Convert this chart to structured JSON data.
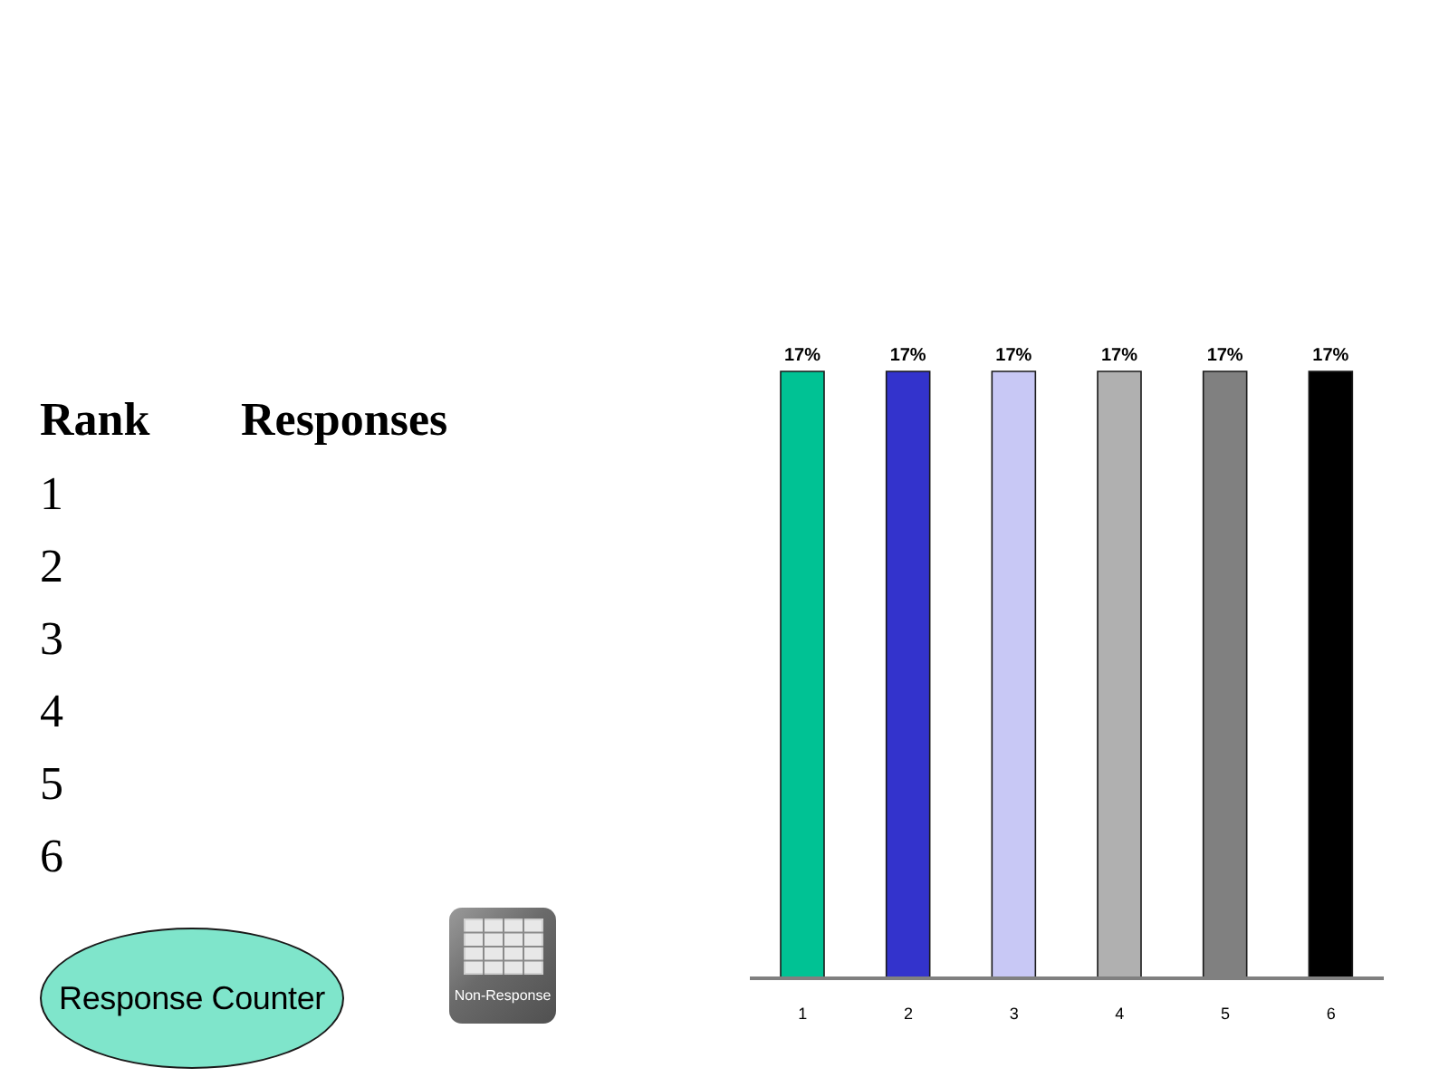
{
  "chart_data": {
    "type": "bar",
    "categories": [
      "1",
      "2",
      "3",
      "4",
      "5",
      "6"
    ],
    "values": [
      17,
      17,
      17,
      17,
      17,
      17
    ],
    "colors": [
      "#00c294",
      "#3333cc",
      "#c8c8f5",
      "#b0b0b0",
      "#808080",
      "#000000"
    ],
    "value_labels": [
      "17%",
      "17%",
      "17%",
      "17%",
      "17%",
      "17%"
    ],
    "annotations": [
      "Rank",
      "Responses",
      "1",
      "2",
      "3",
      "4",
      "5",
      "6",
      "Response Counter",
      "Non-Response"
    ]
  }
}
